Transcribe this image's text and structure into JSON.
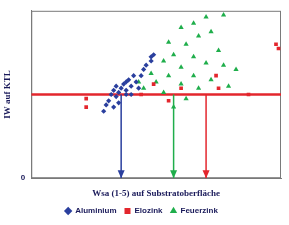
{
  "chart_data": {
    "type": "scatter",
    "x_label": "Wsa (1-5) auf Substratoberfläche",
    "y_label": "IW auf KTL",
    "xlim": [
      0,
      10
    ],
    "ylim": [
      0,
      8
    ],
    "yticks": [
      0,
      {
        "value": 1,
        "label": null
      },
      {
        "value": 2,
        "label": null
      },
      {
        "value": 3,
        "label": null
      },
      {
        "value": 4,
        "label": null
      },
      {
        "value": 5,
        "label": null
      },
      {
        "value": 6,
        "label": null
      },
      {
        "value": 7,
        "label": null
      },
      {
        "value": 8,
        "label": null
      }
    ],
    "tick_labels": "y",
    "grid": true,
    "legend": "bottom",
    "reference_line": {
      "y": 4,
      "color": "#e3262d"
    },
    "arrows": [
      {
        "x": 3.6,
        "color": "#2a3f9e"
      },
      {
        "x": 5.7,
        "color": "#1fae4b"
      },
      {
        "x": 7.0,
        "color": "#e3262d"
      }
    ],
    "series": [
      {
        "name": "Aluminium",
        "color": "#2a3f9e",
        "marker": "diamond",
        "x": [
          2.9,
          3.0,
          3.1,
          3.2,
          3.3,
          3.4,
          3.4,
          3.5,
          3.6,
          3.7,
          3.8,
          3.8,
          3.9,
          4.0,
          4.1,
          4.2,
          4.3,
          4.4,
          4.5,
          4.6,
          4.8,
          4.9,
          3.5,
          3.3,
          4.0,
          3.8,
          4.8
        ],
        "values": [
          3.2,
          3.5,
          3.7,
          4.0,
          4.2,
          3.9,
          4.4,
          4.1,
          4.3,
          4.5,
          4.6,
          4.2,
          4.7,
          4.4,
          4.9,
          4.6,
          4.3,
          4.9,
          5.2,
          5.4,
          5.8,
          5.9,
          3.6,
          3.4,
          4.0,
          4.0,
          5.6
        ]
      },
      {
        "name": "Elozink",
        "color": "#e3262d",
        "marker": "square",
        "x": [
          2.2,
          2.2,
          4.4,
          4.9,
          6.0,
          7.4,
          7.5,
          8.7,
          9.8,
          9.9,
          5.5
        ],
        "values": [
          3.8,
          3.4,
          4.0,
          4.5,
          4.3,
          4.9,
          4.3,
          4.0,
          6.4,
          6.2,
          3.7
        ]
      },
      {
        "name": "Feuerzink",
        "color": "#1fae4b",
        "marker": "triangle",
        "x": [
          7.7,
          7.0,
          6.5,
          6.0,
          6.7,
          7.2,
          5.5,
          6.2,
          7.5,
          5.7,
          6.5,
          7.0,
          5.3,
          6.0,
          7.7,
          8.2,
          4.8,
          5.5,
          6.5,
          7.2,
          5.0,
          6.0,
          4.5,
          6.7,
          5.3,
          5.7,
          6.2,
          7.9,
          4.3
        ],
        "values": [
          7.8,
          7.7,
          7.4,
          7.2,
          6.8,
          7.0,
          6.5,
          6.4,
          6.1,
          5.9,
          5.8,
          5.5,
          5.6,
          5.3,
          5.4,
          5.2,
          5.0,
          4.9,
          4.9,
          4.7,
          4.6,
          4.5,
          4.3,
          4.3,
          4.1,
          3.4,
          3.8,
          4.4,
          4.6
        ]
      }
    ]
  }
}
